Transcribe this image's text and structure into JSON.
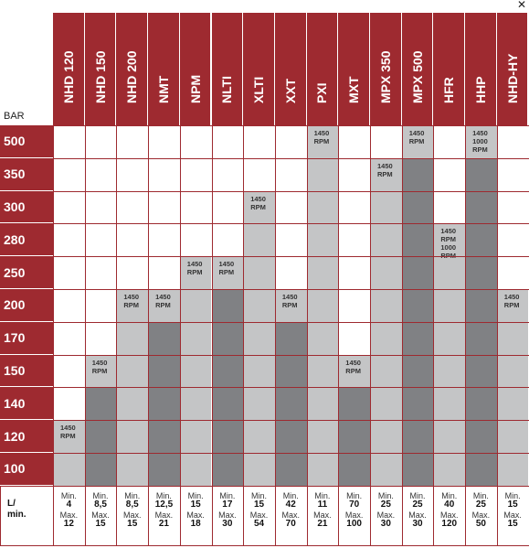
{
  "corner_mark": "✕",
  "bar_label": "BAR",
  "columns": [
    "NHD 120",
    "NHD 150",
    "NHD 200",
    "NMT",
    "NPM",
    "NLTI",
    "XLTI",
    "XXT",
    "PXI",
    "MXT",
    "MPX 350",
    "MPX 500",
    "HFR",
    "HHP",
    "NHD-HY"
  ],
  "rows": [
    "500",
    "350",
    "300",
    "280",
    "250",
    "200",
    "170",
    "150",
    "140",
    "120",
    "100"
  ],
  "rpm_notes": [
    {
      "col": 0,
      "row": 9,
      "text": "1450\nRPM"
    },
    {
      "col": 1,
      "row": 7,
      "text": "1450\nRPM"
    },
    {
      "col": 2,
      "row": 5,
      "text": "1450\nRPM"
    },
    {
      "col": 3,
      "row": 5,
      "text": "1450\nRPM"
    },
    {
      "col": 4,
      "row": 4,
      "text": "1450\nRPM"
    },
    {
      "col": 5,
      "row": 4,
      "text": "1450\nRPM"
    },
    {
      "col": 6,
      "row": 2,
      "text": "1450\nRPM"
    },
    {
      "col": 7,
      "row": 5,
      "text": "1450\nRPM"
    },
    {
      "col": 8,
      "row": 0,
      "text": "1450\nRPM"
    },
    {
      "col": 9,
      "row": 7,
      "text": "1450\nRPM"
    },
    {
      "col": 10,
      "row": 1,
      "text": "1450\nRPM"
    },
    {
      "col": 11,
      "row": 0,
      "text": "1450\nRPM"
    },
    {
      "col": 12,
      "row": 3,
      "text": "1450\nRPM\n1000\nRPM"
    },
    {
      "col": 13,
      "row": 0,
      "text": "1450\n1000\nRPM"
    },
    {
      "col": 14,
      "row": 5,
      "text": "1450\nRPM"
    }
  ],
  "shading_start_row": [
    9,
    7,
    5,
    5,
    4,
    4,
    2,
    5,
    0,
    7,
    1,
    0,
    3,
    0,
    5
  ],
  "flow_label": "L/\nmin.",
  "flow": [
    {
      "min": "4",
      "max": "12"
    },
    {
      "min": "8,5",
      "max": "15"
    },
    {
      "min": "8,5",
      "max": "15"
    },
    {
      "min": "12,5",
      "max": "21"
    },
    {
      "min": "15",
      "max": "18"
    },
    {
      "min": "17",
      "max": "30"
    },
    {
      "min": "15",
      "max": "54"
    },
    {
      "min": "42",
      "max": "70"
    },
    {
      "min": "11",
      "max": "21"
    },
    {
      "min": "70",
      "max": "100"
    },
    {
      "min": "25",
      "max": "30"
    },
    {
      "min": "25",
      "max": "30"
    },
    {
      "min": "40",
      "max": "120"
    },
    {
      "min": "25",
      "max": "50"
    },
    {
      "min": "15",
      "max": "15"
    }
  ],
  "min_word": "Min.",
  "max_word": "Max.",
  "colors": {
    "header_red": "#9e2a30",
    "light_gray": "#c4c5c6",
    "dark_gray": "#808184",
    "white": "#ffffff"
  }
}
